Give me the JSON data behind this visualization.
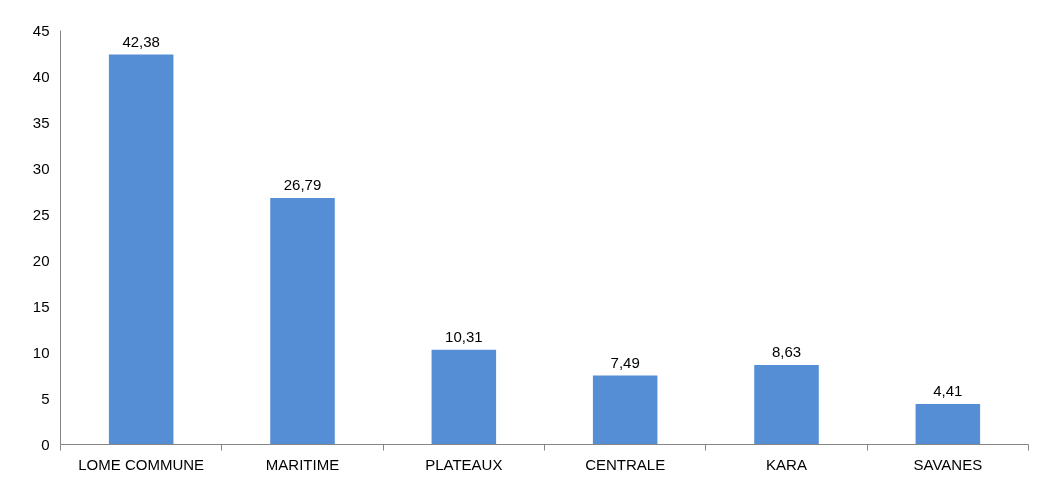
{
  "chart_data": {
    "type": "bar",
    "categories": [
      "LOME COMMUNE",
      "MARITIME",
      "PLATEAUX",
      "CENTRALE",
      "KARA",
      "SAVANES"
    ],
    "values": [
      42.38,
      26.79,
      10.31,
      7.49,
      8.63,
      4.41
    ],
    "value_labels": [
      "42,38",
      "26,79",
      "10,31",
      "7,49",
      "8,63",
      "4,41"
    ],
    "color": "#558ed5",
    "ylim": [
      0,
      45
    ],
    "yticks": [
      0,
      5,
      10,
      15,
      20,
      25,
      30,
      35,
      40,
      45
    ],
    "grid": false
  }
}
